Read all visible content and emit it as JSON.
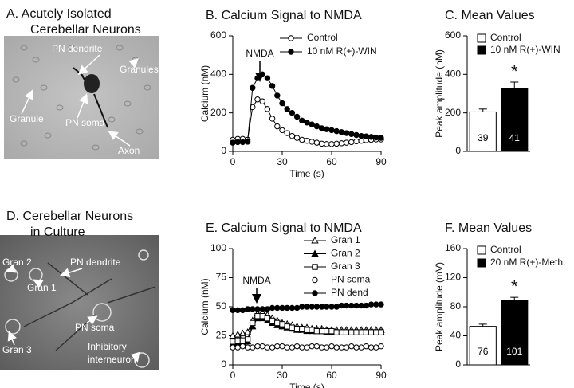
{
  "chart_data": [
    {
      "type": "image",
      "title_lines": [
        "A.  Acutely Isolated",
        "Cerebellar Neurons"
      ],
      "labels": [
        "PN dendrite",
        "Granules",
        "Granule",
        "PN soma",
        "Axon"
      ]
    },
    {
      "type": "line",
      "title": "B.  Calcium Signal to NMDA",
      "x_label": "Time (s)",
      "y_label": "Calcium (nM)",
      "annotation": "NMDA",
      "x": [
        0,
        3,
        6,
        9,
        12,
        15,
        18,
        21,
        24,
        27,
        30,
        33,
        36,
        39,
        42,
        45,
        48,
        51,
        54,
        57,
        60,
        63,
        66,
        69,
        72,
        75,
        78,
        81,
        84,
        87,
        90
      ],
      "series": [
        {
          "name": "Control",
          "color": "#000000",
          "marker": "open-circle",
          "values": [
            60,
            65,
            65,
            60,
            230,
            270,
            260,
            220,
            170,
            130,
            110,
            95,
            80,
            70,
            60,
            55,
            50,
            45,
            40,
            38,
            38,
            40,
            42,
            45,
            48,
            52,
            55,
            58,
            60,
            62,
            62
          ]
        },
        {
          "name": "10 nM R(+)-WIN",
          "color": "#000000",
          "marker": "filled-circle",
          "values": [
            45,
            48,
            48,
            50,
            330,
            380,
            400,
            380,
            340,
            290,
            250,
            220,
            200,
            180,
            160,
            150,
            140,
            130,
            120,
            115,
            110,
            105,
            100,
            95,
            90,
            85,
            80,
            78,
            75,
            72,
            70
          ]
        }
      ],
      "xlim": [
        0,
        90
      ],
      "xticks": [
        0,
        30,
        60,
        90
      ],
      "ylim": [
        0,
        600
      ],
      "yticks": [
        0,
        200,
        400,
        600
      ]
    },
    {
      "type": "bar",
      "title": "C.  Mean Values",
      "y_label": "Peak amplitude (nM)",
      "significance": "*",
      "series": [
        {
          "name": "Control",
          "color": "#ffffff",
          "values": [
            205
          ],
          "errors": [
            15
          ],
          "n_labels": [
            "39"
          ]
        },
        {
          "name": "10 nM R(+)-WIN",
          "color": "#000000",
          "values": [
            325
          ],
          "errors": [
            35
          ],
          "n_labels": [
            "41"
          ]
        }
      ],
      "ylim": [
        0,
        600
      ],
      "yticks": [
        0,
        200,
        400,
        600
      ]
    },
    {
      "type": "image",
      "title_lines": [
        "D.  Cerebellar Neurons",
        "in Culture"
      ],
      "labels": [
        "Gran 2",
        "Gran 1",
        "PN dendrite",
        "PN soma",
        "Gran 3",
        "Inhibitory",
        "interneuron"
      ]
    },
    {
      "type": "line",
      "title": "E.  Calcium Signal to NMDA",
      "x_label": "Time (s)",
      "y_label": "Calcium (nM)",
      "annotation": "NMDA",
      "x": [
        0,
        3,
        6,
        9,
        12,
        15,
        18,
        21,
        24,
        27,
        30,
        33,
        36,
        39,
        42,
        45,
        48,
        51,
        54,
        57,
        60,
        63,
        66,
        69,
        72,
        75,
        78,
        81,
        84,
        87,
        90
      ],
      "series": [
        {
          "name": "Gran 1",
          "color": "#000000",
          "marker": "open-triangle",
          "values": [
            25,
            26,
            27,
            28,
            38,
            44,
            45,
            43,
            40,
            38,
            36,
            35,
            34,
            33,
            32,
            32,
            31,
            31,
            31,
            30,
            30,
            30,
            30,
            30,
            30,
            30,
            30,
            30,
            30,
            30,
            30
          ]
        },
        {
          "name": "Gran 2",
          "color": "#000000",
          "marker": "filled-triangle",
          "values": [
            18,
            19,
            19,
            20,
            33,
            40,
            40,
            38,
            36,
            34,
            33,
            32,
            31,
            30,
            30,
            29,
            29,
            29,
            29,
            28,
            28,
            28,
            28,
            28,
            28,
            28,
            28,
            28,
            28,
            28,
            28
          ]
        },
        {
          "name": "Gran 3",
          "color": "#000000",
          "marker": "open-square",
          "values": [
            20,
            21,
            21,
            22,
            36,
            42,
            42,
            40,
            38,
            36,
            35,
            33,
            32,
            31,
            31,
            30,
            30,
            29,
            29,
            29,
            29,
            28,
            28,
            28,
            28,
            28,
            28,
            28,
            28,
            28,
            28
          ]
        },
        {
          "name": "PN soma",
          "color": "#000000",
          "marker": "open-circle",
          "values": [
            15,
            15,
            16,
            15,
            15,
            16,
            16,
            15,
            15,
            16,
            16,
            15,
            15,
            16,
            15,
            15,
            16,
            16,
            15,
            15,
            16,
            15,
            15,
            15,
            16,
            15,
            15,
            16,
            15,
            15,
            16
          ]
        },
        {
          "name": "PN dend",
          "color": "#000000",
          "marker": "filled-circle",
          "values": [
            47,
            47,
            47,
            48,
            48,
            48,
            48,
            48,
            49,
            49,
            49,
            49,
            49,
            49,
            50,
            50,
            50,
            50,
            50,
            50,
            50,
            50,
            51,
            51,
            51,
            51,
            51,
            51,
            52,
            52,
            52
          ]
        }
      ],
      "xlim": [
        0,
        90
      ],
      "xticks": [
        0,
        30,
        60,
        90
      ],
      "ylim": [
        0,
        100
      ],
      "yticks": [
        0,
        25,
        50,
        75,
        100
      ]
    },
    {
      "type": "bar",
      "title": "F.  Mean Values",
      "y_label": "Peak amplitude (mV)",
      "significance": "*",
      "series": [
        {
          "name": "Control",
          "color": "#ffffff",
          "values": [
            53
          ],
          "errors": [
            3
          ],
          "n_labels": [
            "76"
          ]
        },
        {
          "name": "20 nM R(+)-Meth.",
          "color": "#000000",
          "values": [
            89
          ],
          "errors": [
            4
          ],
          "n_labels": [
            "101"
          ]
        }
      ],
      "ylim": [
        0,
        160
      ],
      "yticks": [
        0,
        40,
        80,
        120,
        160
      ]
    }
  ]
}
